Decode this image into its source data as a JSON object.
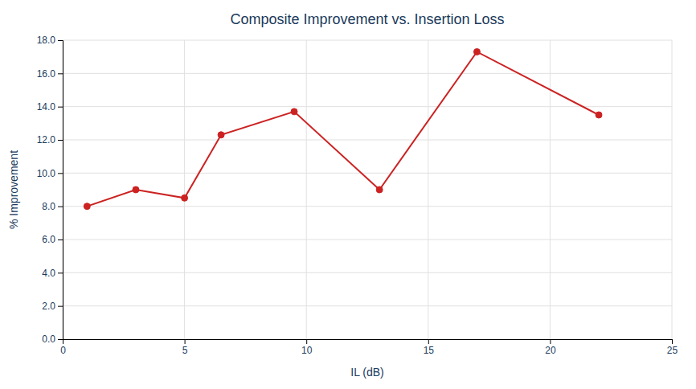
{
  "chart_data": {
    "type": "line",
    "title": "Composite Improvement vs. Insertion Loss",
    "xlabel": "IL (dB)",
    "ylabel": "% Improvement",
    "x": [
      1,
      3,
      5,
      6.5,
      9.5,
      13,
      17,
      22
    ],
    "values": [
      8.0,
      9.0,
      8.5,
      12.3,
      13.7,
      9.0,
      17.3,
      13.5
    ],
    "color": "#cc2222",
    "marker": "circle",
    "xlim": [
      0,
      25
    ],
    "ylim": [
      0,
      18.0
    ],
    "xticks": [
      0,
      5,
      10,
      15,
      20,
      25
    ],
    "yticks": [
      {
        "value": 0.0,
        "label": "0.0"
      },
      {
        "value": 2.0,
        "label": "2.0"
      },
      {
        "value": 4.0,
        "label": "4.0"
      },
      {
        "value": 6.0,
        "label": "6.0"
      },
      {
        "value": 8.0,
        "label": "8.0"
      },
      {
        "value": 10.0,
        "label": "10.0"
      },
      {
        "value": 12.0,
        "label": "12.0"
      },
      {
        "value": 14.0,
        "label": "14.0"
      },
      {
        "value": 16.0,
        "label": "16.0"
      },
      {
        "value": 18.0,
        "label": "18.0"
      }
    ],
    "grid": true
  }
}
